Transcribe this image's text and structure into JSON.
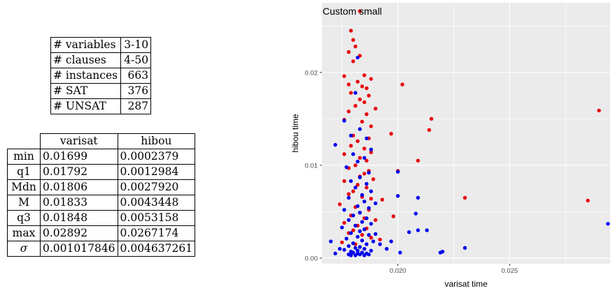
{
  "summary_table": {
    "rows": [
      {
        "label": "# variables",
        "value": "3-10"
      },
      {
        "label": "# clauses",
        "value": "4-50"
      },
      {
        "label": "# instances",
        "value": "663"
      },
      {
        "label": "# SAT",
        "value": "376"
      },
      {
        "label": "# UNSAT",
        "value": "287"
      }
    ]
  },
  "stats_table": {
    "columns": [
      "varisat",
      "hibou"
    ],
    "rows": [
      {
        "label": "min",
        "varisat": "0.01699",
        "hibou": "0.0002379"
      },
      {
        "label": "q1",
        "varisat": "0.01792",
        "hibou": "0.0012984"
      },
      {
        "label": "Mdn",
        "varisat": "0.01806",
        "hibou": "0.0027920"
      },
      {
        "label": "M",
        "varisat": "0.01833",
        "hibou": "0.0043448"
      },
      {
        "label": "q3",
        "varisat": "0.01848",
        "hibou": "0.0053158"
      },
      {
        "label": "max",
        "varisat": "0.02892",
        "hibou": "0.0267174"
      },
      {
        "label": "σ",
        "varisat": "0.001017846",
        "hibou": "0.004637261"
      }
    ]
  },
  "chart_data": {
    "type": "scatter",
    "title": "Custom small",
    "xlabel": "varisat time",
    "ylabel": "hibou time",
    "xlim": [
      0.0166,
      0.0295
    ],
    "ylim": [
      -0.0006,
      0.0275
    ],
    "xticks": [
      {
        "value": 0.02,
        "label": "0.020"
      },
      {
        "value": 0.025,
        "label": "0.025"
      }
    ],
    "yticks": [
      {
        "value": 0.0,
        "label": "0.00"
      },
      {
        "value": 0.01,
        "label": "0.01"
      },
      {
        "value": 0.02,
        "label": "0.02"
      }
    ],
    "grid": true,
    "background": "#ebebeb",
    "gridline_color": "#ffffff",
    "series": [
      {
        "color": "#e8000b",
        "points": [
          [
            0.0183,
            0.0266
          ],
          [
            0.0179,
            0.0245
          ],
          [
            0.018,
            0.0235
          ],
          [
            0.0181,
            0.0228
          ],
          [
            0.0178,
            0.0222
          ],
          [
            0.0183,
            0.0218
          ],
          [
            0.018,
            0.0212
          ],
          [
            0.0185,
            0.0197
          ],
          [
            0.0176,
            0.0196
          ],
          [
            0.0188,
            0.0193
          ],
          [
            0.0182,
            0.019
          ],
          [
            0.0178,
            0.0187
          ],
          [
            0.0184,
            0.0185
          ],
          [
            0.0186,
            0.0183
          ],
          [
            0.0202,
            0.0187
          ],
          [
            0.0179,
            0.0178
          ],
          [
            0.0187,
            0.0175
          ],
          [
            0.0183,
            0.0171
          ],
          [
            0.0185,
            0.0168
          ],
          [
            0.0181,
            0.0164
          ],
          [
            0.019,
            0.0161
          ],
          [
            0.0178,
            0.0158
          ],
          [
            0.0186,
            0.0155
          ],
          [
            0.0215,
            0.015
          ],
          [
            0.0176,
            0.0149
          ],
          [
            0.0184,
            0.0147
          ],
          [
            0.0188,
            0.0142
          ],
          [
            0.0214,
            0.0138
          ],
          [
            0.0197,
            0.0134
          ],
          [
            0.018,
            0.0132
          ],
          [
            0.0187,
            0.0129
          ],
          [
            0.0182,
            0.0126
          ],
          [
            0.0179,
            0.0121
          ],
          [
            0.0185,
            0.0118
          ],
          [
            0.0188,
            0.0114
          ],
          [
            0.0176,
            0.0112
          ],
          [
            0.0183,
            0.0108
          ],
          [
            0.0186,
            0.0105
          ],
          [
            0.0209,
            0.0105
          ],
          [
            0.0181,
            0.01
          ],
          [
            0.0178,
            0.0097
          ],
          [
            0.0187,
            0.0094
          ],
          [
            0.0185,
            0.0091
          ],
          [
            0.02,
            0.0094
          ],
          [
            0.0183,
            0.0088
          ],
          [
            0.0189,
            0.0085
          ],
          [
            0.0176,
            0.0083
          ],
          [
            0.0182,
            0.0079
          ],
          [
            0.0186,
            0.0076
          ],
          [
            0.018,
            0.0072
          ],
          [
            0.0178,
            0.0069
          ],
          [
            0.0184,
            0.0066
          ],
          [
            0.0188,
            0.0064
          ],
          [
            0.0193,
            0.0063
          ],
          [
            0.023,
            0.0065
          ],
          [
            0.0174,
            0.0058
          ],
          [
            0.0181,
            0.0055
          ],
          [
            0.0187,
            0.0052
          ],
          [
            0.0183,
            0.0049
          ],
          [
            0.0179,
            0.0046
          ],
          [
            0.0185,
            0.0043
          ],
          [
            0.019,
            0.0041
          ],
          [
            0.0176,
            0.0038
          ],
          [
            0.0182,
            0.0035
          ],
          [
            0.0186,
            0.0032
          ],
          [
            0.018,
            0.003
          ],
          [
            0.0178,
            0.0027
          ],
          [
            0.0184,
            0.0025
          ],
          [
            0.0188,
            0.0022
          ],
          [
            0.0192,
            0.002
          ],
          [
            0.0175,
            0.0017
          ],
          [
            0.0181,
            0.0015
          ],
          [
            0.0285,
            0.0062
          ],
          [
            0.029,
            0.0159
          ],
          [
            0.0198,
            0.0045
          ]
        ]
      },
      {
        "color": "#0000ee",
        "points": [
          [
            0.0182,
            0.0216
          ],
          [
            0.0181,
            0.0178
          ],
          [
            0.0176,
            0.0148
          ],
          [
            0.0183,
            0.0139
          ],
          [
            0.0179,
            0.0132
          ],
          [
            0.0186,
            0.0129
          ],
          [
            0.0172,
            0.0122
          ],
          [
            0.0188,
            0.0117
          ],
          [
            0.018,
            0.0112
          ],
          [
            0.02,
            0.0093
          ],
          [
            0.0185,
            0.0108
          ],
          [
            0.0182,
            0.0104
          ],
          [
            0.0177,
            0.0098
          ],
          [
            0.0187,
            0.0092
          ],
          [
            0.0183,
            0.0087
          ],
          [
            0.0179,
            0.0083
          ],
          [
            0.0186,
            0.008
          ],
          [
            0.0181,
            0.0076
          ],
          [
            0.0188,
            0.0072
          ],
          [
            0.02,
            0.0067
          ],
          [
            0.0184,
            0.0068
          ],
          [
            0.0178,
            0.0065
          ],
          [
            0.0185,
            0.0061
          ],
          [
            0.019,
            0.0059
          ],
          [
            0.0209,
            0.0065
          ],
          [
            0.0182,
            0.0056
          ],
          [
            0.0187,
            0.0054
          ],
          [
            0.0176,
            0.0052
          ],
          [
            0.0183,
            0.0049
          ],
          [
            0.0208,
            0.0048
          ],
          [
            0.018,
            0.0046
          ],
          [
            0.0186,
            0.0043
          ],
          [
            0.0178,
            0.0041
          ],
          [
            0.0184,
            0.0039
          ],
          [
            0.0188,
            0.0037
          ],
          [
            0.0181,
            0.0035
          ],
          [
            0.0175,
            0.0033
          ],
          [
            0.0185,
            0.0031
          ],
          [
            0.0183,
            0.0029
          ],
          [
            0.0179,
            0.0027
          ],
          [
            0.0187,
            0.0025
          ],
          [
            0.0182,
            0.0023
          ],
          [
            0.0177,
            0.0021
          ],
          [
            0.0184,
            0.0019
          ],
          [
            0.0189,
            0.0018
          ],
          [
            0.018,
            0.0016
          ],
          [
            0.0186,
            0.0015
          ],
          [
            0.0178,
            0.0013
          ],
          [
            0.0183,
            0.0012
          ],
          [
            0.0181,
            0.0011
          ],
          [
            0.0185,
            0.001
          ],
          [
            0.0176,
            0.0009
          ],
          [
            0.0182,
            0.0008
          ],
          [
            0.0188,
            0.0008
          ],
          [
            0.0179,
            0.0007
          ],
          [
            0.0184,
            0.0006
          ],
          [
            0.018,
            0.0006
          ],
          [
            0.0186,
            0.0005
          ],
          [
            0.0182,
            0.0005
          ],
          [
            0.0178,
            0.0004
          ],
          [
            0.0183,
            0.0004
          ],
          [
            0.0181,
            0.0003
          ],
          [
            0.0185,
            0.0003
          ],
          [
            0.0179,
            0.0003
          ],
          [
            0.0187,
            0.0004
          ],
          [
            0.0172,
            0.0005
          ],
          [
            0.0174,
            0.001
          ],
          [
            0.017,
            0.0018
          ],
          [
            0.0192,
            0.0015
          ],
          [
            0.0195,
            0.001
          ],
          [
            0.0197,
            0.0018
          ],
          [
            0.0201,
            0.0006
          ],
          [
            0.0205,
            0.0028
          ],
          [
            0.0209,
            0.003
          ],
          [
            0.0213,
            0.003
          ],
          [
            0.0219,
            0.0006
          ],
          [
            0.022,
            0.0007
          ],
          [
            0.023,
            0.0011
          ],
          [
            0.0294,
            0.0037
          ],
          [
            0.019,
            0.0026
          ]
        ]
      }
    ]
  }
}
